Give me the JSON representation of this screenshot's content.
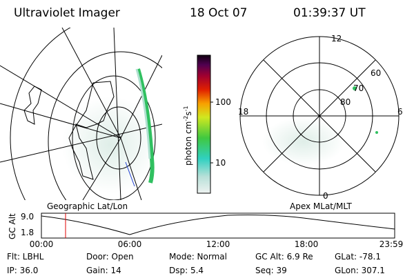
{
  "header": {
    "title": "Ultraviolet Imager",
    "date": "18 Oct 07",
    "time": "01:39:37 UT"
  },
  "colorbar": {
    "label_parts": [
      "photon cm",
      "-2",
      "s",
      "-1"
    ],
    "ticks": [
      "100",
      "10"
    ]
  },
  "polar": {
    "mlt_labels": [
      "12",
      "18",
      "6",
      "0"
    ],
    "lat_labels": [
      "60",
      "70",
      "80"
    ]
  },
  "panels": {
    "left": "Geographic Lat/Lon",
    "right": "Apex MLat/MLT"
  },
  "altitude": {
    "axis_label": "GC Alt",
    "y_labels": [
      "9.0",
      "1.8"
    ],
    "x_labels": [
      "00:00",
      "06:00",
      "12:00",
      "18:00",
      "23:59"
    ]
  },
  "footer": {
    "rows": [
      [
        "Flt: LBHL",
        "Door: Open",
        "Mode: Normal",
        "GC Alt: 6.9 Re",
        "GLat: -78.1"
      ],
      [
        "IP: 36.0",
        "Gain: 14",
        "Dsp: 5.4",
        "Seq: 39",
        "GLon: 307.1"
      ]
    ]
  }
}
